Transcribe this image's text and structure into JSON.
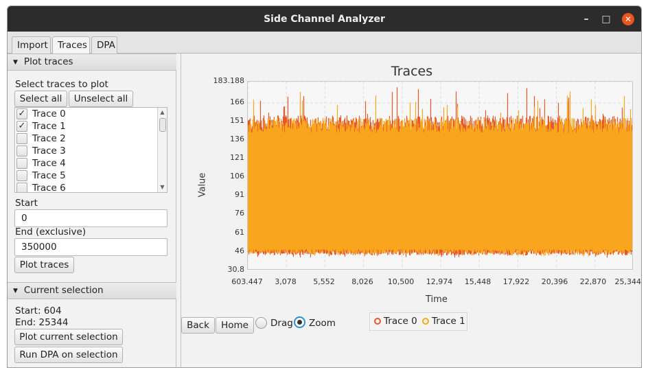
{
  "window": {
    "title": "Side Channel Analyzer",
    "minimize": "–",
    "maximize": "□",
    "close": "✕"
  },
  "tabs": [
    "Import",
    "Traces",
    "DPA"
  ],
  "plot_traces": {
    "header": "Plot traces",
    "select_label": "Select traces to plot",
    "select_all": "Select all",
    "unselect_all": "Unselect all",
    "traces": [
      {
        "label": "Trace 0",
        "checked": true
      },
      {
        "label": "Trace 1",
        "checked": true
      },
      {
        "label": "Trace 2",
        "checked": false
      },
      {
        "label": "Trace 3",
        "checked": false
      },
      {
        "label": "Trace 4",
        "checked": false
      },
      {
        "label": "Trace 5",
        "checked": false
      },
      {
        "label": "Trace 6",
        "checked": false
      }
    ],
    "start_label": "Start",
    "start_value": "0",
    "end_label": "End (exclusive)",
    "end_value": "350000",
    "plot_button": "Plot traces"
  },
  "current_selection": {
    "header": "Current selection",
    "start_text": "Start: 604",
    "end_text": "End: 25344",
    "plot_button": "Plot current selection",
    "dpa_button": "Run DPA on selection"
  },
  "chart_controls": {
    "back": "Back",
    "home": "Home",
    "drag": "Drag",
    "zoom": "Zoom",
    "mode": "Zoom"
  },
  "chart_data": {
    "type": "area",
    "title": "Traces",
    "xlabel": "Time",
    "ylabel": "Value",
    "xlim": [
      603.447,
      25344.7
    ],
    "ylim": [
      30.8,
      183.188
    ],
    "x_ticks": [
      "603.447",
      "3,078",
      "5,552",
      "8,026",
      "10,500",
      "12,974",
      "15,448",
      "17,922",
      "20,396",
      "22,870",
      "25,344.7"
    ],
    "y_ticks": [
      "183.188",
      "166",
      "151",
      "136",
      "121",
      "106",
      "91",
      "76",
      "61",
      "46",
      "30.8"
    ],
    "grid": true,
    "legend_position": "bottom",
    "series": [
      {
        "name": "Trace 0",
        "color": "#e8572a",
        "range_low": 41,
        "range_high": 182,
        "typical_low": 44,
        "typical_high": 150
      },
      {
        "name": "Trace 1",
        "color": "#f9a61e",
        "range_low": 42,
        "range_high": 176,
        "typical_low": 45,
        "typical_high": 148
      }
    ]
  }
}
